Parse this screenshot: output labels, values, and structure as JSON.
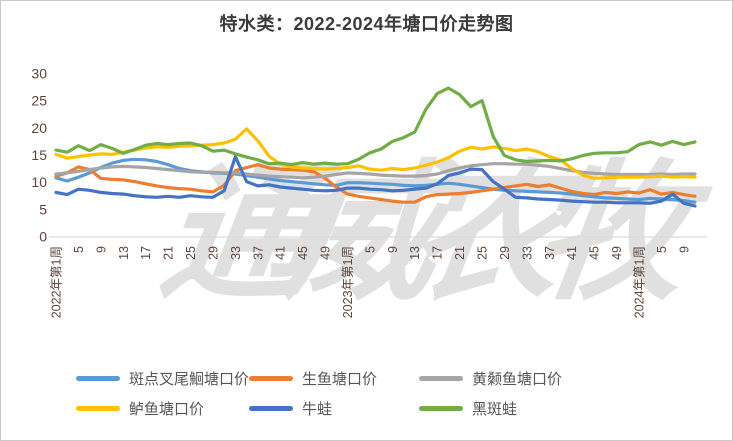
{
  "title": "特水类：2022-2024年塘口价走势图",
  "watermark": "通威农牧",
  "chart_data": {
    "type": "line",
    "title": "特水类：2022-2024年塘口价走势图",
    "xlabel": "",
    "ylabel": "",
    "ylim": [
      0,
      30
    ],
    "yticks": [
      0,
      5,
      10,
      15,
      20,
      25,
      30
    ],
    "grid": false,
    "legend_position": "bottom",
    "x_tick_labels": [
      "2022年第1周",
      "5",
      "9",
      "13",
      "17",
      "21",
      "25",
      "29",
      "33",
      "37",
      "41",
      "45",
      "49",
      "2023年第1周",
      "5",
      "9",
      "13",
      "17",
      "21",
      "25",
      "29",
      "33",
      "37",
      "41",
      "45",
      "49",
      "2024年第1周",
      "5",
      "9"
    ],
    "x_tick_data_step": 2,
    "categories": [
      "2022-W01",
      "2022-W03",
      "2022-W05",
      "2022-W07",
      "2022-W09",
      "2022-W11",
      "2022-W13",
      "2022-W15",
      "2022-W17",
      "2022-W19",
      "2022-W21",
      "2022-W23",
      "2022-W25",
      "2022-W27",
      "2022-W29",
      "2022-W31",
      "2022-W33",
      "2022-W35",
      "2022-W37",
      "2022-W39",
      "2022-W41",
      "2022-W43",
      "2022-W45",
      "2022-W47",
      "2022-W49",
      "2022-W51",
      "2023-W01",
      "2023-W03",
      "2023-W05",
      "2023-W07",
      "2023-W09",
      "2023-W11",
      "2023-W13",
      "2023-W15",
      "2023-W17",
      "2023-W19",
      "2023-W21",
      "2023-W23",
      "2023-W25",
      "2023-W27",
      "2023-W29",
      "2023-W31",
      "2023-W33",
      "2023-W35",
      "2023-W37",
      "2023-W39",
      "2023-W41",
      "2023-W43",
      "2023-W45",
      "2023-W47",
      "2023-W49",
      "2023-W51",
      "2024-W01",
      "2024-W03",
      "2024-W05",
      "2024-W07",
      "2024-W09",
      "2024-W11"
    ],
    "series": [
      {
        "name": "斑点叉尾鮰塘口价",
        "color": "#5B9BD5",
        "values": [
          10.9,
          10.3,
          11.0,
          11.8,
          12.8,
          13.6,
          14.1,
          14.3,
          14.2,
          13.9,
          13.3,
          12.6,
          12.2,
          12.0,
          11.8,
          11.7,
          11.6,
          11.3,
          11.0,
          10.7,
          10.4,
          10.2,
          10.0,
          9.8,
          9.6,
          9.5,
          10.0,
          10.0,
          9.9,
          9.8,
          9.7,
          9.5,
          9.4,
          9.5,
          9.7,
          9.9,
          9.7,
          9.4,
          9.1,
          8.8,
          8.6,
          8.5,
          8.4,
          8.3,
          8.2,
          8.1,
          7.9,
          7.6,
          7.4,
          7.2,
          7.1,
          7.0,
          6.9,
          7.1,
          7.0,
          6.9,
          6.7,
          6.4
        ]
      },
      {
        "name": "生鱼塘口价",
        "color": "#ED7D31",
        "values": [
          11.2,
          11.8,
          12.9,
          12.4,
          10.8,
          10.6,
          10.5,
          10.2,
          9.8,
          9.4,
          9.1,
          8.9,
          8.8,
          8.5,
          8.3,
          9.5,
          12.2,
          12.8,
          13.3,
          12.7,
          12.5,
          12.4,
          12.3,
          12.0,
          10.8,
          9.2,
          7.9,
          7.5,
          7.2,
          6.9,
          6.6,
          6.4,
          6.4,
          7.4,
          7.8,
          7.9,
          8.0,
          8.2,
          8.5,
          8.8,
          9.1,
          9.4,
          9.7,
          9.3,
          9.6,
          9.0,
          8.4,
          8.0,
          7.8,
          8.2,
          8.0,
          8.3,
          8.1,
          8.7,
          7.9,
          8.2,
          7.8,
          7.5
        ]
      },
      {
        "name": "黄颡鱼塘口价",
        "color": "#A5A5A5",
        "values": [
          11.6,
          11.8,
          12.1,
          12.4,
          12.7,
          12.9,
          13.0,
          12.9,
          12.8,
          12.6,
          12.4,
          12.2,
          12.0,
          11.9,
          11.9,
          11.8,
          11.8,
          11.6,
          11.4,
          11.2,
          11.1,
          11.0,
          10.9,
          11.0,
          11.2,
          11.5,
          11.8,
          11.7,
          11.6,
          11.4,
          11.3,
          11.2,
          11.2,
          11.3,
          11.6,
          12.2,
          12.7,
          13.1,
          13.3,
          13.5,
          13.5,
          13.4,
          13.4,
          13.2,
          13.0,
          12.6,
          12.2,
          11.9,
          11.7,
          11.6,
          11.5,
          11.5,
          11.5,
          11.5,
          11.6,
          11.5,
          11.6,
          11.6
        ]
      },
      {
        "name": "鲈鱼塘口价",
        "color": "#FFC000",
        "values": [
          15.2,
          14.5,
          14.8,
          15.1,
          15.3,
          15.2,
          15.6,
          16.0,
          16.4,
          16.6,
          16.5,
          16.7,
          16.8,
          16.9,
          17.0,
          17.3,
          18.0,
          19.9,
          17.7,
          14.9,
          13.4,
          12.9,
          12.7,
          12.6,
          12.5,
          12.6,
          12.8,
          13.1,
          12.5,
          12.3,
          12.6,
          12.4,
          12.7,
          13.2,
          13.8,
          14.6,
          15.8,
          16.5,
          16.2,
          16.6,
          16.3,
          15.9,
          16.2,
          15.7,
          14.8,
          14.2,
          12.6,
          11.4,
          10.8,
          10.9,
          11.0,
          11.0,
          11.0,
          11.1,
          11.2,
          11.0,
          11.1,
          11.0
        ]
      },
      {
        "name": "牛蛙",
        "color": "#4472C4",
        "values": [
          8.2,
          7.8,
          8.8,
          8.6,
          8.2,
          8.0,
          7.9,
          7.6,
          7.4,
          7.3,
          7.5,
          7.3,
          7.6,
          7.4,
          7.3,
          8.5,
          14.8,
          10.2,
          9.4,
          9.6,
          9.2,
          9.0,
          8.8,
          8.6,
          8.5,
          8.6,
          9.0,
          9.0,
          8.8,
          8.7,
          8.5,
          8.6,
          8.8,
          9.0,
          9.8,
          11.3,
          11.8,
          12.5,
          12.4,
          10.2,
          8.8,
          7.3,
          7.2,
          7.0,
          6.9,
          6.8,
          6.6,
          6.5,
          6.4,
          6.4,
          6.3,
          6.3,
          6.3,
          6.2,
          6.6,
          7.9,
          6.2,
          5.7
        ]
      },
      {
        "name": "黑斑蛙",
        "color": "#70AD47",
        "values": [
          16.0,
          15.6,
          16.8,
          15.9,
          17.0,
          16.3,
          15.4,
          16.1,
          16.9,
          17.2,
          17.0,
          17.2,
          17.3,
          16.8,
          15.8,
          16.0,
          15.3,
          14.7,
          14.2,
          13.5,
          13.6,
          13.3,
          13.7,
          13.4,
          13.6,
          13.4,
          13.5,
          14.3,
          15.5,
          16.2,
          17.6,
          18.3,
          19.3,
          23.5,
          26.4,
          27.4,
          26.2,
          24.0,
          25.1,
          18.5,
          15.0,
          14.2,
          13.9,
          14.0,
          14.1,
          14.0,
          14.4,
          15.0,
          15.4,
          15.5,
          15.5,
          15.7,
          17.0,
          17.5,
          16.9,
          17.6,
          17.0,
          17.5
        ]
      }
    ],
    "colors": {
      "axis_label": "#5d453c",
      "axis_line": "#d9d9d9",
      "title_text": "#3b3b3b",
      "legend_text": "#575757",
      "watermark": "#c7c7c7"
    }
  }
}
